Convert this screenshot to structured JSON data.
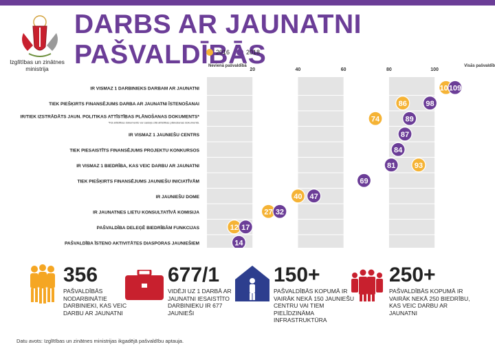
{
  "header": {
    "title": "DARBS AR JAUNATNI PAŠVALDĪBĀS",
    "ministry": "Izglītības un zinātnes ministrija"
  },
  "colors": {
    "brand": "#6b3d97",
    "y2016": "#f5b335",
    "y2018": "#6b3d97",
    "stat_orange": "#f5a623",
    "stat_red": "#c8202e",
    "stat_blue": "#2d3e8e"
  },
  "chart_data": {
    "type": "scatter",
    "legend": [
      "2016",
      "2018"
    ],
    "legend_position": "top-left",
    "x_labels": {
      "start": "Nevienā pašvaldībā",
      "end": "Visās pašvaldībās",
      "ticks": [
        "20",
        "40",
        "60",
        "80",
        "100"
      ]
    },
    "xlim": [
      0,
      119
    ],
    "categories": [
      "IR VISMAZ 1 DARBINIEKS DARBAM AR JAUNATNI",
      "TIEK PIEŠĶIRTS FINANSĒJUMS DARBA AR JAUNATNI ĪSTENOŠANAI",
      "IR/TIEK IZSTRĀDĀTS JAUN. POLITIKAS ATTĪSTĪBAS PLĀNOŠANAS DOKUMENTS*",
      "IR VISMAZ 1 JAUNIEŠU CENTRS",
      "TIEK PIESAISTĪTS FINANSĒJUMS PROJEKTU KONKURSOS",
      "IR VISMAZ 1 BIEDRĪBA, KAS VEIC DARBU AR JAUNATNI",
      "TIEK PIEŠĶIRTS FINANSĒJUMS JAUNIEŠU INICIATĪVĀM",
      "IR JAUNIEŠU DOME",
      "IR JAUNATNES LIETU KONSULTATĪVĀ KOMISIJA",
      "PAŠVALDĪBA DELEĢĒ BIEDRĪBĀM FUNKCIJAS",
      "PAŠVALDĪBA ĪSTENO AKTIVITĀTES DIASPORAS JAUNIEŠIEM"
    ],
    "footnote": "*Kā attīstības dokuments var sadaļa citā attīstības plānošanas dokumentā.",
    "series": [
      {
        "name": "2016",
        "values": [
          105,
          86,
          74,
          87,
          null,
          93,
          null,
          40,
          27,
          12,
          null
        ]
      },
      {
        "name": "2018",
        "values": [
          109,
          98,
          89,
          87,
          84,
          81,
          69,
          47,
          32,
          17,
          14
        ]
      }
    ]
  },
  "stats": [
    {
      "number": "356",
      "text": "PAŠVALDĪBĀS NODARBINĀTIE DARBINIEKI, KAS VEIC DARBU AR JAUNATNI",
      "icon": "people-group-icon"
    },
    {
      "number": "677/1",
      "text": "VIDĒJI UZ 1 DARBĀ AR JAUNATNI IESAISTĪTO DARBINIEKU IR 677 JAUNIEŠI",
      "icon": "briefcase-icon"
    },
    {
      "number": "150+",
      "text": "PAŠVALDĪBĀS KOPUMĀ IR VAIRĀK NEKĀ 150 JAUNIEŠU CENTRU VAI TIEM PIELĪDZINĀMA INFRASTRUKTŪRA",
      "icon": "house-person-icon"
    },
    {
      "number": "250+",
      "text": "PAŠVALDĪBĀS KOPUMĀ IR VAIRĀK NEKĀ 250 BIEDRĪBU, KAS VEIC DARBU AR JAUNATNI",
      "icon": "crowd-icon"
    }
  ],
  "source": "Datu avots: Izglītības un zinātnes ministrijas ikgadējā pašvaldību aptauja."
}
